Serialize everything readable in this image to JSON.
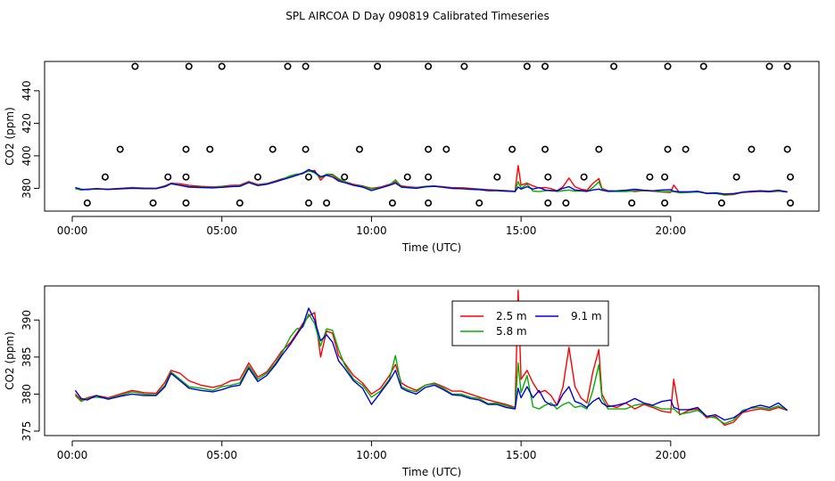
{
  "chart_data": {
    "title": "SPL AIRCOA D  Day 090819  Calibrated Timeseries",
    "panels": [
      {
        "name": "top-panel",
        "type": "line",
        "xlabel": "Time (UTC)",
        "ylabel": "CO2 (ppm)",
        "xlim": [
          0,
          24
        ],
        "ylim": [
          366,
          458
        ],
        "xticks": [
          0,
          5,
          10,
          15,
          20
        ],
        "xtick_labels": [
          "00:00",
          "05:00",
          "10:00",
          "15:00",
          "20:00"
        ],
        "yticks": [
          380,
          400,
          420,
          440
        ],
        "ytick_labels": [
          "380",
          "400",
          "420",
          "440"
        ],
        "circles": {
          "rows": [
            {
              "y": 455,
              "x": [
                2.1,
                3.9,
                5.0,
                7.2,
                7.8,
                10.2,
                11.9,
                13.1,
                15.2,
                15.8,
                18.1,
                19.9,
                21.1,
                23.3,
                23.9
              ]
            },
            {
              "y": 404,
              "x": [
                1.6,
                3.8,
                4.6,
                6.7,
                7.8,
                9.6,
                11.9,
                12.5,
                14.7,
                15.8,
                17.6,
                19.9,
                20.5,
                22.7,
                23.9
              ]
            },
            {
              "y": 387,
              "x": [
                1.1,
                3.2,
                3.8,
                6.2,
                7.9,
                9.1,
                11.2,
                11.9,
                14.2,
                15.9,
                17.1,
                19.3,
                19.8,
                22.2,
                24.0
              ]
            },
            {
              "y": 371,
              "x": [
                0.5,
                2.7,
                3.8,
                5.6,
                7.9,
                8.5,
                10.7,
                11.9,
                13.6,
                15.9,
                16.5,
                18.7,
                19.8,
                21.7,
                24.0
              ]
            }
          ]
        }
      },
      {
        "name": "bottom-panel",
        "type": "line",
        "xlabel": "Time (UTC)",
        "ylabel": "CO2 (ppm)",
        "xlim": [
          0,
          24
        ],
        "ylim": [
          374.4,
          394.6
        ],
        "xticks": [
          0,
          5,
          10,
          15,
          20
        ],
        "xtick_labels": [
          "00:00",
          "05:00",
          "10:00",
          "15:00",
          "20:00"
        ],
        "yticks": [
          375,
          380,
          385,
          390
        ],
        "ytick_labels": [
          "375",
          "380",
          "385",
          "390"
        ],
        "legend": {
          "position": "top-center",
          "entries": [
            "2.5 m",
            "5.8 m",
            "9.1 m"
          ]
        }
      }
    ],
    "series": [
      {
        "name": "2.5 m",
        "color": "#ff0000",
        "x": [
          0.1,
          0.3,
          0.5,
          0.8,
          1.2,
          1.6,
          2.0,
          2.4,
          2.8,
          3.1,
          3.3,
          3.6,
          3.9,
          4.3,
          4.7,
          5.0,
          5.3,
          5.6,
          5.9,
          6.2,
          6.5,
          6.8,
          7.0,
          7.3,
          7.5,
          7.7,
          7.9,
          8.1,
          8.3,
          8.5,
          8.7,
          8.9,
          9.1,
          9.4,
          9.7,
          10.0,
          10.3,
          10.6,
          10.8,
          11.0,
          11.2,
          11.5,
          11.8,
          12.1,
          12.4,
          12.7,
          13.0,
          13.3,
          13.6,
          13.9,
          14.2,
          14.5,
          14.8,
          14.9,
          15.0,
          15.2,
          15.4,
          15.6,
          15.8,
          16.0,
          16.2,
          16.4,
          16.6,
          16.8,
          17.0,
          17.2,
          17.4,
          17.6,
          17.7,
          17.9,
          18.2,
          18.5,
          18.8,
          19.1,
          19.4,
          19.7,
          20.0,
          20.1,
          20.3,
          20.6,
          20.9,
          21.2,
          21.5,
          21.8,
          22.1,
          22.4,
          22.7,
          23.0,
          23.3,
          23.6,
          23.9
        ],
        "y": [
          380.0,
          379.2,
          379.5,
          379.8,
          379.5,
          380.0,
          380.5,
          380.2,
          380.1,
          381.6,
          383.2,
          382.8,
          381.8,
          381.2,
          380.9,
          381.2,
          381.8,
          382.0,
          384.2,
          382.3,
          383.0,
          384.6,
          385.8,
          387.0,
          388.2,
          389.5,
          390.5,
          391.0,
          385.0,
          388.5,
          388.2,
          385.2,
          384.2,
          382.5,
          381.5,
          380.0,
          380.8,
          382.5,
          384.0,
          381.5,
          381.0,
          380.5,
          381.2,
          381.5,
          381.0,
          380.4,
          380.4,
          380.0,
          379.6,
          379.2,
          378.9,
          378.6,
          378.2,
          394.0,
          382.0,
          383.2,
          381.5,
          380.2,
          380.5,
          379.8,
          378.5,
          381.0,
          386.3,
          381.0,
          379.5,
          378.8,
          383.0,
          386.0,
          380.0,
          378.5,
          378.2,
          378.8,
          378.0,
          378.6,
          378.2,
          377.7,
          377.5,
          382.0,
          377.2,
          377.8,
          378.0,
          376.8,
          377.0,
          375.8,
          376.2,
          377.5,
          377.8,
          378.0,
          377.8,
          378.2,
          377.8
        ]
      },
      {
        "name": "5.8 m",
        "color": "#00b000",
        "x": [
          0.1,
          0.3,
          0.5,
          0.8,
          1.2,
          1.6,
          2.0,
          2.4,
          2.8,
          3.1,
          3.3,
          3.6,
          3.9,
          4.3,
          4.7,
          5.0,
          5.3,
          5.6,
          5.9,
          6.2,
          6.5,
          6.8,
          7.0,
          7.3,
          7.5,
          7.7,
          7.9,
          8.1,
          8.3,
          8.5,
          8.7,
          8.9,
          9.1,
          9.4,
          9.7,
          10.0,
          10.3,
          10.6,
          10.8,
          11.0,
          11.2,
          11.5,
          11.8,
          12.1,
          12.4,
          12.7,
          13.0,
          13.3,
          13.6,
          13.9,
          14.2,
          14.5,
          14.8,
          14.9,
          15.0,
          15.2,
          15.4,
          15.6,
          15.8,
          16.0,
          16.2,
          16.4,
          16.6,
          16.8,
          17.0,
          17.2,
          17.4,
          17.6,
          17.7,
          17.9,
          18.2,
          18.5,
          18.8,
          19.1,
          19.4,
          19.7,
          20.0,
          20.1,
          20.3,
          20.6,
          20.9,
          21.2,
          21.5,
          21.8,
          22.1,
          22.4,
          22.7,
          23.0,
          23.3,
          23.6,
          23.9
        ],
        "y": [
          379.8,
          379.0,
          379.4,
          379.6,
          379.4,
          379.8,
          380.3,
          380.0,
          379.9,
          381.2,
          383.0,
          382.0,
          381.0,
          380.8,
          380.5,
          381.0,
          381.2,
          381.5,
          383.8,
          382.0,
          382.8,
          384.2,
          385.5,
          387.8,
          388.8,
          389.0,
          390.8,
          389.5,
          386.5,
          388.8,
          388.6,
          386.0,
          384.0,
          382.0,
          381.2,
          379.6,
          380.4,
          382.0,
          385.2,
          381.0,
          380.6,
          380.3,
          381.2,
          381.4,
          380.8,
          380.0,
          380.0,
          379.6,
          379.4,
          378.7,
          378.8,
          378.4,
          378.1,
          384.2,
          380.2,
          382.5,
          378.3,
          378.0,
          378.5,
          378.8,
          378.0,
          378.6,
          378.9,
          378.2,
          378.4,
          378.0,
          380.5,
          384.0,
          379.5,
          378.0,
          378.0,
          378.0,
          378.5,
          378.7,
          378.4,
          378.0,
          378.0,
          378.0,
          377.3,
          377.5,
          377.8,
          377.0,
          376.8,
          376.0,
          376.5,
          377.8,
          378.1,
          378.2,
          378.0,
          378.4,
          377.8
        ]
      },
      {
        "name": "9.1 m",
        "color": "#0000dd",
        "x": [
          0.1,
          0.3,
          0.5,
          0.8,
          1.2,
          1.6,
          2.0,
          2.4,
          2.8,
          3.1,
          3.3,
          3.6,
          3.9,
          4.3,
          4.7,
          5.0,
          5.3,
          5.6,
          5.9,
          6.2,
          6.5,
          6.8,
          7.0,
          7.3,
          7.5,
          7.7,
          7.9,
          8.1,
          8.3,
          8.5,
          8.7,
          8.9,
          9.1,
          9.4,
          9.7,
          10.0,
          10.3,
          10.6,
          10.8,
          11.0,
          11.2,
          11.5,
          11.8,
          12.1,
          12.4,
          12.7,
          13.0,
          13.3,
          13.6,
          13.9,
          14.2,
          14.5,
          14.8,
          14.9,
          15.0,
          15.2,
          15.4,
          15.6,
          15.8,
          16.0,
          16.2,
          16.4,
          16.6,
          16.8,
          17.0,
          17.2,
          17.4,
          17.6,
          17.7,
          17.9,
          18.2,
          18.5,
          18.8,
          19.1,
          19.4,
          19.7,
          20.0,
          20.1,
          20.3,
          20.6,
          20.9,
          21.2,
          21.5,
          21.8,
          22.1,
          22.4,
          22.7,
          23.0,
          23.3,
          23.6,
          23.9
        ],
        "y": [
          380.5,
          379.4,
          379.2,
          379.8,
          379.3,
          379.7,
          380.0,
          379.8,
          379.8,
          381.0,
          382.8,
          381.8,
          380.8,
          380.5,
          380.3,
          380.6,
          381.0,
          381.2,
          383.5,
          381.7,
          382.5,
          384.0,
          385.2,
          386.8,
          388.0,
          389.2,
          391.6,
          390.0,
          387.2,
          388.0,
          387.0,
          384.5,
          383.5,
          381.8,
          380.8,
          378.6,
          380.2,
          381.8,
          383.2,
          380.8,
          380.4,
          380.0,
          380.9,
          381.2,
          380.6,
          379.9,
          379.8,
          379.4,
          379.2,
          378.6,
          378.6,
          378.2,
          378.0,
          380.8,
          379.5,
          381.0,
          379.5,
          380.5,
          379.0,
          378.5,
          378.5,
          380.0,
          381.0,
          379.0,
          378.7,
          378.2,
          379.0,
          379.5,
          378.8,
          378.3,
          378.5,
          378.8,
          379.4,
          378.8,
          378.5,
          379.0,
          379.2,
          378.2,
          377.9,
          377.9,
          378.2,
          377.0,
          377.2,
          376.5,
          376.8,
          377.6,
          378.2,
          378.5,
          378.2,
          378.8,
          377.8
        ]
      }
    ]
  }
}
